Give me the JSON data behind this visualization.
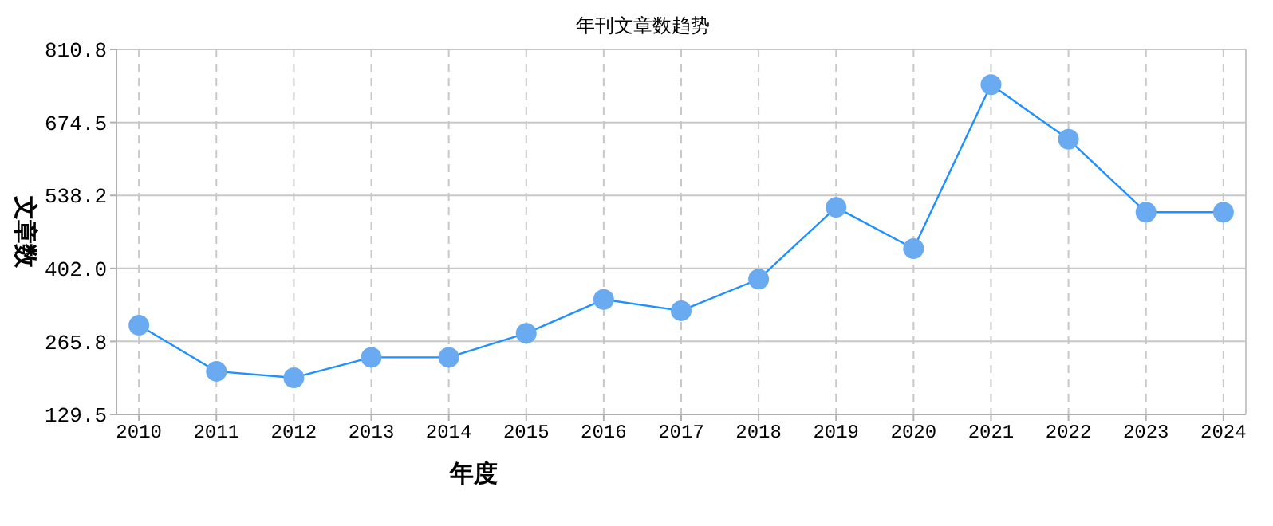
{
  "chart_data": {
    "type": "line",
    "title": "年刊文章数趋势",
    "xlabel": "年度",
    "ylabel": "文章数",
    "categories": [
      "2010",
      "2011",
      "2012",
      "2013",
      "2014",
      "2015",
      "2016",
      "2017",
      "2018",
      "2019",
      "2020",
      "2021",
      "2022",
      "2023",
      "2024"
    ],
    "series": [
      {
        "color": "#1e90ff",
        "values": [
          296,
          210,
          198,
          236,
          236,
          281,
          344,
          323,
          382,
          516,
          439,
          745,
          643,
          507,
          507
        ]
      }
    ],
    "ylim": [
      129.5,
      810.8
    ],
    "yticks": [
      {
        "value": 129.5,
        "label": "129.5"
      },
      {
        "value": 265.8,
        "label": "265.8"
      },
      {
        "value": 402,
        "label": "402.0"
      },
      {
        "value": 538.2,
        "label": "538.2"
      },
      {
        "value": 674.5,
        "label": "674.5"
      },
      {
        "value": 810.8,
        "label": "810.8"
      }
    ],
    "grid": true,
    "marker": "circle",
    "line_style": "solid"
  }
}
